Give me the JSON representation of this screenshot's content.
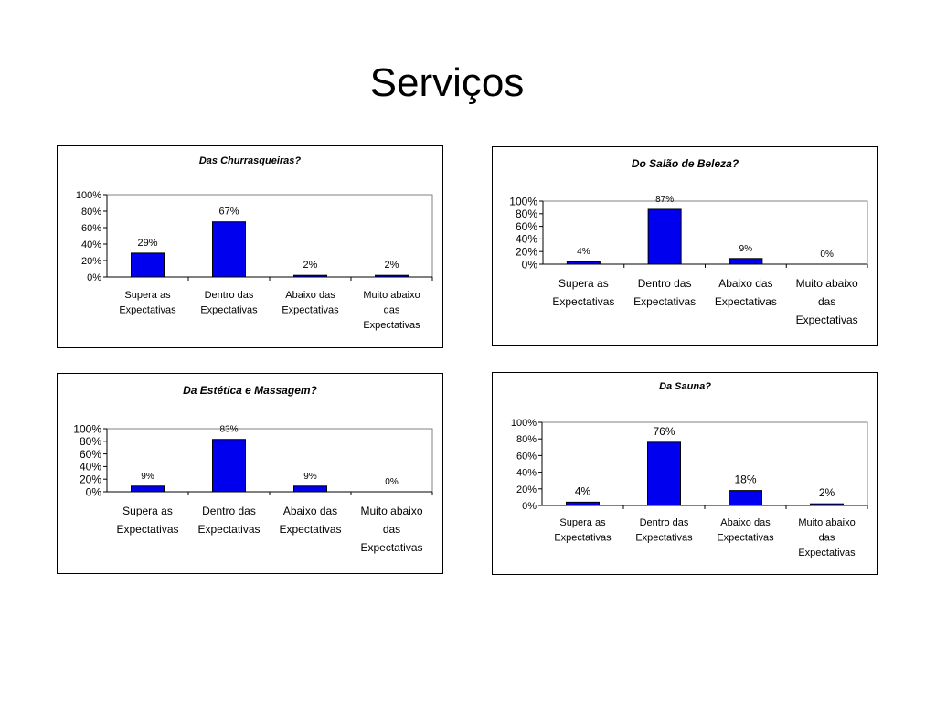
{
  "slide": {
    "title": "Serviços"
  },
  "chart_data": [
    {
      "type": "bar",
      "title": "Das Churrasqueiras?",
      "categories": [
        [
          "Supera as",
          "Expectativas"
        ],
        [
          "Dentro das",
          "Expectativas"
        ],
        [
          "Abaixo das",
          "Expectativas"
        ],
        [
          "Muito abaixo",
          "das",
          "Expectativas"
        ]
      ],
      "values": [
        29,
        67,
        2,
        2
      ],
      "data_labels": [
        "29%",
        "67%",
        "2%",
        "2%"
      ],
      "yticks": [
        "0%",
        "20%",
        "40%",
        "60%",
        "80%",
        "100%"
      ],
      "ylim": [
        0,
        100
      ],
      "xlabel": "",
      "ylabel": "",
      "bar_color": "#0000ee",
      "legend": "none",
      "grid": false
    },
    {
      "type": "bar",
      "title": "Do Salão de Beleza?",
      "categories": [
        [
          "Supera as",
          "Expectativas"
        ],
        [
          "Dentro das",
          "Expectativas"
        ],
        [
          "Abaixo das",
          "Expectativas"
        ],
        [
          "Muito abaixo",
          "das",
          "Expectativas"
        ]
      ],
      "values": [
        4,
        87,
        9,
        0
      ],
      "data_labels": [
        "4%",
        "87%",
        "9%",
        "0%"
      ],
      "yticks": [
        "0%",
        "20%",
        "40%",
        "60%",
        "80%",
        "100%"
      ],
      "ylim": [
        0,
        100
      ],
      "xlabel": "",
      "ylabel": "",
      "bar_color": "#0000ee",
      "legend": "none",
      "grid": false
    },
    {
      "type": "bar",
      "title": "Da Estética e Massagem?",
      "categories": [
        [
          "Supera as",
          "Expectativas"
        ],
        [
          "Dentro das",
          "Expectativas"
        ],
        [
          "Abaixo das",
          "Expectativas"
        ],
        [
          "Muito abaixo",
          "das",
          "Expectativas"
        ]
      ],
      "values": [
        9,
        83,
        9,
        0
      ],
      "data_labels": [
        "9%",
        "83%",
        "9%",
        "0%"
      ],
      "yticks": [
        "0%",
        "20%",
        "40%",
        "60%",
        "80%",
        "100%"
      ],
      "ylim": [
        0,
        100
      ],
      "xlabel": "",
      "ylabel": "",
      "bar_color": "#0000ee",
      "legend": "none",
      "grid": false
    },
    {
      "type": "bar",
      "title": "Da Sauna?",
      "categories": [
        [
          "Supera as",
          "Expectativas"
        ],
        [
          "Dentro das",
          "Expectativas"
        ],
        [
          "Abaixo das",
          "Expectativas"
        ],
        [
          "Muito abaixo",
          "das",
          "Expectativas"
        ]
      ],
      "values": [
        4,
        76,
        18,
        2
      ],
      "data_labels": [
        "4%",
        "76%",
        "18%",
        "2%"
      ],
      "yticks": [
        "0%",
        "20%",
        "40%",
        "60%",
        "80%",
        "100%"
      ],
      "ylim": [
        0,
        100
      ],
      "xlabel": "",
      "ylabel": "",
      "bar_color": "#0000ee",
      "legend": "none",
      "grid": false
    }
  ]
}
